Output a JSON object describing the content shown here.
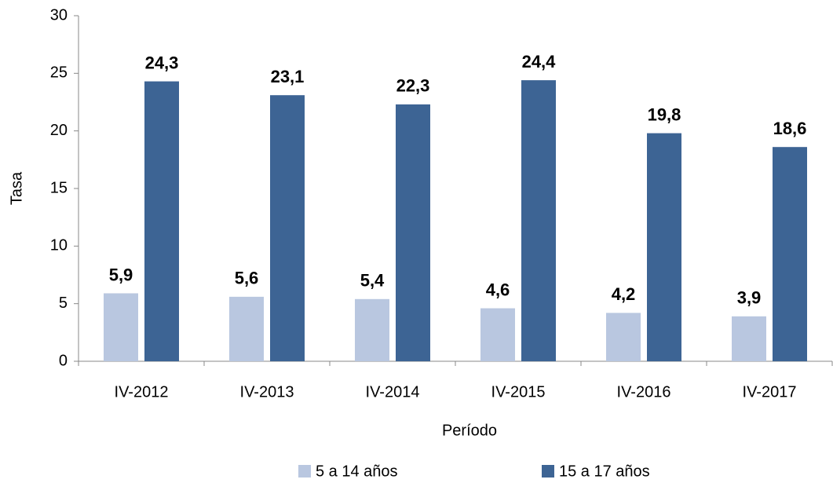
{
  "chart_data": {
    "type": "bar",
    "x_label": "Período",
    "y_label": "Tasa",
    "categories": [
      "IV-2012",
      "IV-2013",
      "IV-2014",
      "IV-2015",
      "IV-2016",
      "IV-2017"
    ],
    "series": [
      {
        "name": "5 a 14 años",
        "color": "#b9c7e0",
        "values": [
          5.9,
          5.6,
          5.4,
          4.6,
          4.2,
          3.9
        ],
        "value_labels": [
          "5,9",
          "5,6",
          "5,4",
          "4,6",
          "4,2",
          "3,9"
        ]
      },
      {
        "name": "15 a 17 años",
        "color": "#3d6494",
        "values": [
          24.3,
          23.1,
          22.3,
          24.4,
          19.8,
          18.6
        ],
        "value_labels": [
          "24,3",
          "23,1",
          "22,3",
          "24,4",
          "19,8",
          "18,6"
        ]
      }
    ],
    "ylim": [
      0,
      30
    ],
    "yticks": [
      0,
      5,
      10,
      15,
      20,
      25,
      30
    ],
    "grid": false,
    "legend": "bottom"
  }
}
